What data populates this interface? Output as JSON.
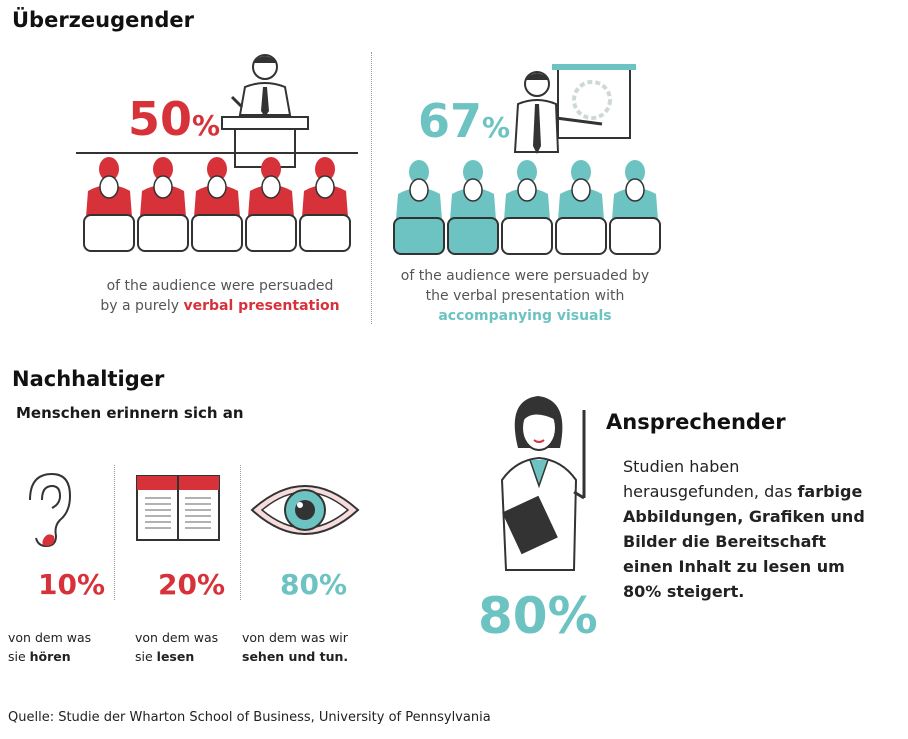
{
  "section1": {
    "title": "Überzeugender",
    "left": {
      "number": "50",
      "percent": "%",
      "caption_line1": "of the audience were persuaded",
      "caption_line2_prefix": "by a purely ",
      "caption_line2_bold": "verbal presentation",
      "color": "#d7323a"
    },
    "right": {
      "number": "67",
      "percent": "%",
      "caption_line1": "of the audience were persuaded by",
      "caption_line2": "the verbal presentation with",
      "caption_line3_bold": "accompanying visuals",
      "color": "#6cc3c2"
    }
  },
  "section2": {
    "title": "Nachhaltiger",
    "subtitle": "Menschen erinnern sich an",
    "items": [
      {
        "icon": "ear-icon",
        "value": "10%",
        "line1": "von dem was",
        "line2_prefix": "sie ",
        "line2_bold": "hören"
      },
      {
        "icon": "book-icon",
        "value": "20%",
        "line1": "von dem was",
        "line2_prefix": "sie ",
        "line2_bold": "lesen"
      },
      {
        "icon": "eye-icon",
        "value": "80%",
        "line1": "von dem was wir",
        "line2_prefix": "",
        "line2_bold": "sehen und tun."
      }
    ]
  },
  "section3": {
    "title": "Ansprechender",
    "text_line1": "Studien haben",
    "text_line2_prefix": "herausgefunden, das ",
    "text_line2_bold": "farbige",
    "text_bold_lines": [
      "Abbildungen, Grafiken und",
      "Bilder die Bereitschaft",
      "einen Inhalt zu lesen um",
      "80% steigert."
    ],
    "big_number": "80%"
  },
  "source": "Quelle: Studie der Wharton School of Business,  University of Pennsylvania",
  "colors": {
    "red": "#d7323a",
    "teal": "#6cc3c2",
    "gray": "#555555"
  }
}
